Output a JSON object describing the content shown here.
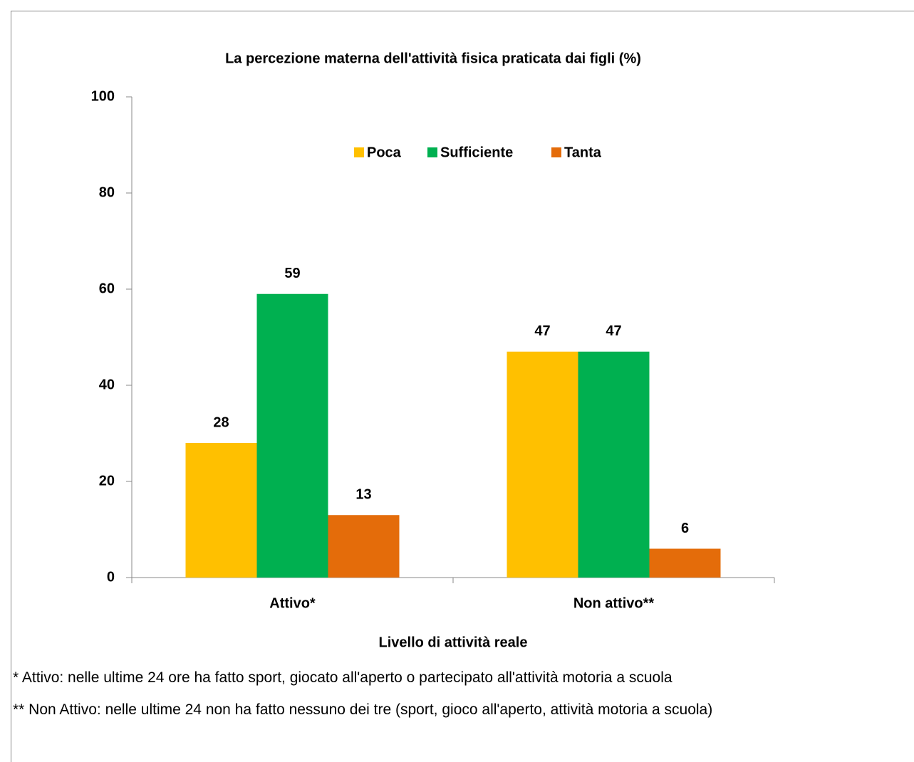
{
  "chart_data": {
    "type": "bar",
    "title": "La percezione materna dell'attività fisica praticata dai figli (%)",
    "x_label": "Livello di attività reale",
    "categories": [
      "Attivo*",
      "Non attivo**"
    ],
    "series": [
      {
        "name": "Poca",
        "color": "#FFC000",
        "values": [
          28,
          47
        ]
      },
      {
        "name": "Sufficiente",
        "color": "#00B050",
        "values": [
          59,
          47
        ]
      },
      {
        "name": "Tanta",
        "color": "#E46C0A",
        "values": [
          13,
          6
        ]
      }
    ],
    "ylim": [
      0,
      100
    ],
    "yticks": [
      0,
      20,
      40,
      60,
      80,
      100
    ],
    "legend": "top",
    "notes": [
      "* Attivo: nelle ultime 24 ore ha fatto sport, giocato all'aperto o partecipato all'attività motoria a scuola",
      "** Non Attivo: nelle ultime 24 non ha fatto nessuno dei tre (sport, gioco all'aperto, attività motoria a scuola)"
    ]
  }
}
